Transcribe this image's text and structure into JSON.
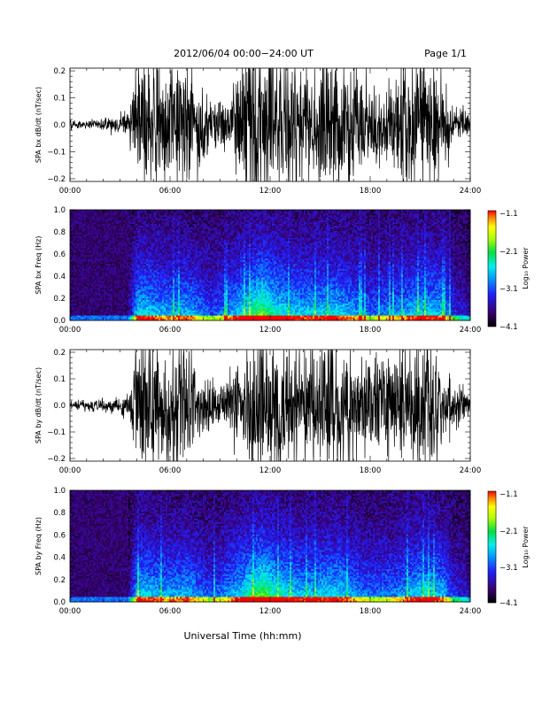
{
  "header": {
    "title": "2012/06/04  00:00−24:00 UT",
    "page": "Page 1/1"
  },
  "x_axis_label": "Universal Time (hh:mm)",
  "colorbar": {
    "label": "Log₁₀ Power",
    "ticks": [
      "−1.1",
      "−2.1",
      "−3.1",
      "−4.1"
    ],
    "values": [
      -1.1,
      -2.1,
      -3.1,
      -4.1
    ]
  },
  "chart_data": [
    {
      "type": "line",
      "ylabel": "SPA bx dB/dt (nT/sec)",
      "x_ticks": [
        "00:00",
        "06:00",
        "12:00",
        "18:00",
        "24:00"
      ],
      "xlim_hours": [
        0,
        24
      ],
      "y_ticks": [
        "0.2",
        "0.1",
        "0.0",
        "−0.1",
        "−0.2"
      ],
      "y_tick_values": [
        0.2,
        0.1,
        0.0,
        -0.1,
        -0.2
      ],
      "ylim": [
        -0.21,
        0.21
      ],
      "series_envelope_hours": [
        0,
        2,
        3.5,
        4.1,
        6,
        6.8,
        8,
        9.5,
        10.5,
        12,
        14,
        16,
        18,
        19.5,
        21,
        22,
        23,
        24
      ],
      "series_envelope_amplitude": [
        0.02,
        0.02,
        0.05,
        0.3,
        0.25,
        0.3,
        0.15,
        0.1,
        0.3,
        0.3,
        0.25,
        0.3,
        0.15,
        0.2,
        0.3,
        0.25,
        0.08,
        0.05
      ]
    },
    {
      "type": "heatmap",
      "ylabel": "SPA bx Freq (Hz)",
      "x_ticks": [
        "00:00",
        "06:00",
        "12:00",
        "18:00",
        "24:00"
      ],
      "xlim_hours": [
        0,
        24
      ],
      "y_ticks": [
        "1.0",
        "0.8",
        "0.6",
        "0.4",
        "0.2",
        "0.0"
      ],
      "y_tick_values": [
        1.0,
        0.8,
        0.6,
        0.4,
        0.2,
        0.0
      ],
      "ylim": [
        0,
        1.0
      ],
      "zlim": [
        -4.1,
        -1.1
      ]
    },
    {
      "type": "line",
      "ylabel": "SPA by dB/dt (nT/sec)",
      "x_ticks": [
        "00:00",
        "06:00",
        "12:00",
        "18:00",
        "24:00"
      ],
      "xlim_hours": [
        0,
        24
      ],
      "y_ticks": [
        "0.2",
        "0.1",
        "0.0",
        "−0.1",
        "−0.2"
      ],
      "y_tick_values": [
        0.2,
        0.1,
        0.0,
        -0.1,
        -0.2
      ],
      "ylim": [
        -0.21,
        0.21
      ],
      "series_envelope_hours": [
        0,
        2,
        3.5,
        4.1,
        6,
        6.8,
        8,
        9.5,
        10.5,
        12,
        14,
        16,
        18,
        19.5,
        21,
        22,
        23,
        24
      ],
      "series_envelope_amplitude": [
        0.02,
        0.025,
        0.04,
        0.3,
        0.25,
        0.3,
        0.12,
        0.1,
        0.25,
        0.3,
        0.25,
        0.28,
        0.2,
        0.22,
        0.3,
        0.25,
        0.1,
        0.06
      ]
    },
    {
      "type": "heatmap",
      "ylabel": "SPA by Freq (Hz)",
      "x_ticks": [
        "00:00",
        "06:00",
        "12:00",
        "18:00",
        "24:00"
      ],
      "xlim_hours": [
        0,
        24
      ],
      "y_ticks": [
        "1.0",
        "0.8",
        "0.6",
        "0.4",
        "0.2",
        "0.0"
      ],
      "y_tick_values": [
        1.0,
        0.8,
        0.6,
        0.4,
        0.2,
        0.0
      ],
      "ylim": [
        0,
        1.0
      ],
      "zlim": [
        -4.1,
        -1.1
      ]
    }
  ]
}
